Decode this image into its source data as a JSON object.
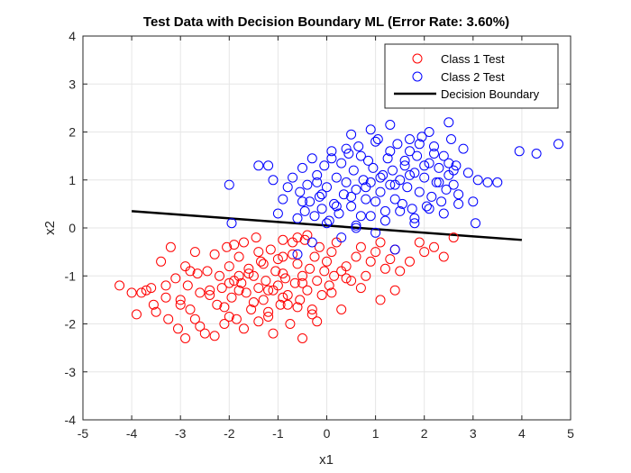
{
  "chart_data": {
    "type": "scatter",
    "title": "Test Data with Decision Boundary ML (Error Rate: 3.60%)",
    "xlabel": "x1",
    "ylabel": "x2",
    "xlim": [
      -5,
      5
    ],
    "ylim": [
      -4,
      4
    ],
    "xticks": [
      -5,
      -4,
      -3,
      -2,
      -1,
      0,
      1,
      2,
      3,
      4,
      5
    ],
    "yticks": [
      -4,
      -3,
      -2,
      -1,
      0,
      1,
      2,
      3,
      4
    ],
    "grid": true,
    "legend_position": "top-right",
    "boundary": {
      "name": "Decision Boundary",
      "color": "#000000",
      "x": [
        -4,
        4
      ],
      "y": [
        0.35,
        -0.25
      ]
    },
    "series": [
      {
        "name": "Class 1 Test",
        "color": "#ff0000",
        "marker": "open-circle",
        "x": [
          -4.25,
          -4.0,
          -3.9,
          -3.8,
          -3.7,
          -3.6,
          -3.55,
          -3.5,
          -3.4,
          -3.3,
          -3.25,
          -3.2,
          -3.1,
          -3.05,
          -3.0,
          -2.9,
          -2.85,
          -2.8,
          -2.7,
          -2.65,
          -2.6,
          -2.5,
          -2.45,
          -2.4,
          -2.3,
          -2.25,
          -2.2,
          -2.15,
          -2.1,
          -2.05,
          -2.0,
          -1.95,
          -1.9,
          -1.85,
          -1.8,
          -1.75,
          -1.7,
          -1.65,
          -1.6,
          -1.55,
          -1.5,
          -1.45,
          -1.4,
          -1.35,
          -1.3,
          -1.25,
          -1.2,
          -1.15,
          -1.1,
          -1.05,
          -1.0,
          -0.95,
          -0.9,
          -0.85,
          -0.8,
          -0.75,
          -0.7,
          -0.65,
          -0.6,
          -0.55,
          -0.5,
          -0.45,
          -0.4,
          -0.35,
          -0.3,
          -0.25,
          -0.2,
          -0.15,
          -0.1,
          -0.05,
          0.0,
          0.05,
          0.1,
          0.15,
          0.2,
          0.3,
          0.4,
          0.5,
          0.6,
          0.7,
          0.8,
          0.9,
          1.0,
          1.1,
          1.2,
          1.3,
          1.4,
          1.5,
          1.7,
          1.9,
          2.0,
          2.2,
          2.4,
          2.6,
          -3.0,
          -2.7,
          -2.4,
          -2.1,
          -1.8,
          -1.5,
          -1.2,
          -0.9,
          -0.6,
          -0.3,
          0.1,
          -2.9,
          -2.6,
          -2.3,
          -2.0,
          -1.7,
          -1.4,
          -1.1,
          -0.8,
          -0.5,
          -0.2,
          0.3,
          -3.3,
          -2.0,
          -1.6,
          -1.3,
          -1.0,
          -0.7,
          0.4,
          0.7,
          1.1,
          1.4,
          -2.8,
          -1.9,
          -1.4,
          -0.9,
          -0.6,
          -0.4,
          -1.8,
          -1.2,
          -0.9,
          -0.5
        ],
        "y": [
          -1.2,
          -1.35,
          -1.8,
          -1.35,
          -1.3,
          -1.25,
          -1.6,
          -1.75,
          -0.7,
          -1.2,
          -1.9,
          -0.4,
          -1.05,
          -2.1,
          -1.5,
          -0.8,
          -1.2,
          -1.7,
          -0.5,
          -0.95,
          -1.35,
          -2.2,
          -0.9,
          -1.3,
          -0.55,
          -1.6,
          -1.0,
          -1.25,
          -2.0,
          -0.4,
          -0.8,
          -1.45,
          -1.1,
          -1.9,
          -0.6,
          -1.15,
          -0.3,
          -1.35,
          -0.85,
          -1.7,
          -1.0,
          -0.2,
          -1.25,
          -0.7,
          -1.5,
          -1.1,
          -1.85,
          -0.45,
          -1.3,
          -0.9,
          -1.2,
          -1.6,
          -0.6,
          -1.05,
          -1.4,
          -2.0,
          -0.3,
          -1.15,
          -0.75,
          -1.5,
          -1.0,
          -0.25,
          -1.3,
          -0.85,
          -1.7,
          -0.6,
          -1.1,
          -0.4,
          -1.4,
          -0.9,
          -0.7,
          -1.2,
          -0.5,
          -1.0,
          -0.3,
          -0.9,
          -0.8,
          -1.1,
          -0.6,
          -0.4,
          -1.0,
          -0.7,
          -0.5,
          -0.3,
          -0.85,
          -0.65,
          -0.45,
          -0.9,
          -0.7,
          -0.3,
          -0.5,
          -0.4,
          -0.6,
          -0.2,
          -1.6,
          -1.9,
          -1.4,
          -1.65,
          -1.3,
          -1.55,
          -1.75,
          -1.45,
          -1.65,
          -1.8,
          -1.35,
          -2.3,
          -2.05,
          -2.25,
          -1.85,
          -2.1,
          -1.95,
          -2.2,
          -1.6,
          -2.3,
          -1.95,
          -1.7,
          -1.45,
          -1.15,
          -0.95,
          -0.75,
          -0.65,
          -0.55,
          -1.05,
          -1.25,
          -1.5,
          -1.3,
          -0.9,
          -0.35,
          -0.5,
          -0.25,
          -0.2,
          -0.15,
          -1.0,
          -1.3,
          -0.95,
          -1.15
        ],
        "r": 5
      },
      {
        "name": "Class 2 Test",
        "color": "#0000ff",
        "marker": "open-circle",
        "x": [
          -2.0,
          -1.95,
          -1.4,
          -1.2,
          -1.1,
          -1.0,
          -0.9,
          -0.8,
          -0.7,
          -0.6,
          -0.55,
          -0.5,
          -0.45,
          -0.4,
          -0.35,
          -0.3,
          -0.25,
          -0.2,
          -0.15,
          -0.1,
          -0.05,
          0.0,
          0.05,
          0.1,
          0.15,
          0.2,
          0.25,
          0.3,
          0.35,
          0.4,
          0.45,
          0.5,
          0.55,
          0.6,
          0.65,
          0.7,
          0.75,
          0.8,
          0.85,
          0.9,
          0.95,
          1.0,
          1.05,
          1.1,
          1.15,
          1.2,
          1.25,
          1.3,
          1.35,
          1.4,
          1.45,
          1.5,
          1.55,
          1.6,
          1.65,
          1.7,
          1.75,
          1.8,
          1.85,
          1.9,
          1.95,
          2.0,
          2.05,
          2.1,
          2.15,
          2.2,
          2.25,
          2.3,
          2.35,
          2.4,
          2.45,
          2.5,
          2.55,
          2.6,
          2.65,
          2.7,
          2.8,
          2.9,
          3.0,
          3.1,
          3.3,
          3.5,
          3.95,
          4.3,
          4.75,
          -0.6,
          -0.3,
          0.0,
          0.3,
          0.6,
          0.9,
          1.2,
          1.5,
          1.8,
          2.1,
          2.4,
          2.7,
          3.05,
          -0.5,
          -0.1,
          0.2,
          0.5,
          0.8,
          1.1,
          1.4,
          1.7,
          2.0,
          2.3,
          2.6,
          -0.2,
          0.1,
          0.4,
          0.7,
          1.0,
          1.3,
          1.6,
          1.9,
          2.2,
          2.5,
          0.5,
          0.9,
          1.3,
          1.7,
          2.1,
          2.5,
          0.6,
          1.0,
          1.4,
          1.8
        ],
        "y": [
          0.9,
          0.1,
          1.3,
          1.3,
          1.0,
          0.3,
          0.6,
          0.85,
          1.05,
          0.2,
          0.75,
          1.25,
          0.35,
          0.9,
          0.55,
          1.45,
          0.25,
          1.1,
          0.65,
          0.4,
          1.3,
          0.85,
          0.15,
          1.6,
          0.5,
          1.05,
          0.3,
          1.35,
          0.7,
          0.95,
          1.55,
          0.45,
          1.2,
          0.8,
          1.7,
          0.25,
          1.0,
          0.6,
          1.4,
          0.95,
          1.25,
          0.55,
          1.85,
          0.75,
          1.1,
          0.35,
          1.45,
          0.9,
          1.2,
          0.6,
          1.75,
          1.0,
          0.5,
          1.3,
          0.85,
          1.6,
          0.4,
          1.15,
          1.5,
          0.75,
          1.9,
          1.05,
          0.45,
          1.35,
          0.65,
          1.7,
          0.95,
          1.25,
          0.55,
          1.5,
          0.8,
          1.1,
          1.85,
          0.9,
          1.3,
          0.7,
          1.65,
          1.15,
          0.55,
          1.0,
          0.95,
          0.95,
          1.6,
          1.55,
          1.75,
          -0.55,
          -0.3,
          0.1,
          -0.2,
          0.0,
          0.25,
          0.15,
          0.35,
          0.2,
          0.4,
          0.3,
          0.5,
          0.1,
          0.55,
          0.7,
          0.45,
          0.65,
          0.85,
          1.05,
          0.9,
          1.1,
          1.3,
          0.95,
          1.2,
          0.95,
          1.45,
          1.65,
          1.5,
          1.8,
          1.6,
          1.4,
          1.75,
          1.55,
          1.35,
          1.95,
          2.05,
          2.15,
          1.85,
          2.0,
          2.2,
          0.05,
          -0.1,
          -0.45,
          0.1
        ]
      }
    ]
  }
}
